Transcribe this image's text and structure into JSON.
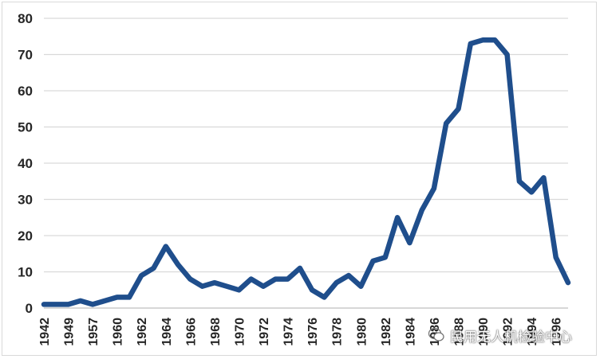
{
  "chart_data": {
    "type": "line",
    "title": "",
    "xlabel": "",
    "ylabel": "",
    "ylim": [
      0,
      80
    ],
    "yticks": [
      0,
      10,
      20,
      30,
      40,
      50,
      60,
      70,
      80
    ],
    "grid": "horizontal",
    "legend": "none",
    "x": [
      1942,
      1948,
      1949,
      1956,
      1957,
      1958,
      1960,
      1961,
      1962,
      1963,
      1964,
      1965,
      1966,
      1967,
      1968,
      1969,
      1970,
      1971,
      1972,
      1973,
      1974,
      1975,
      1976,
      1977,
      1978,
      1979,
      1980,
      1981,
      1982,
      1983,
      1984,
      1985,
      1986,
      1987,
      1988,
      1989,
      1990,
      1991,
      1992,
      1993,
      1994,
      1995,
      1996,
      1997
    ],
    "x_tick_labels": [
      "1942",
      "",
      "1949",
      "",
      "1957",
      "",
      "1960",
      "",
      "1962",
      "",
      "1964",
      "",
      "1966",
      "",
      "1968",
      "",
      "1970",
      "",
      "1972",
      "",
      "1974",
      "",
      "1976",
      "",
      "1978",
      "",
      "1980",
      "",
      "1982",
      "",
      "1984",
      "",
      "1986",
      "",
      "1988",
      "",
      "1990",
      "",
      "1992",
      "",
      "1994",
      "",
      "1996",
      ""
    ],
    "series": [
      {
        "values": [
          1,
          1,
          1,
          2,
          1,
          2,
          3,
          3,
          9,
          11,
          17,
          12,
          8,
          6,
          7,
          6,
          5,
          8,
          6,
          8,
          8,
          11,
          5,
          3,
          7,
          9,
          6,
          13,
          14,
          25,
          18,
          27,
          33,
          51,
          55,
          73,
          74,
          74,
          70,
          35,
          32,
          36,
          14,
          7
        ],
        "color": "#1f4e8c"
      }
    ],
    "axis_color": "#bfbfbf",
    "grid_color": "#d9d9d9"
  },
  "watermark": {
    "text": "民用无人机检验中心",
    "icon": "wechat-icon"
  }
}
